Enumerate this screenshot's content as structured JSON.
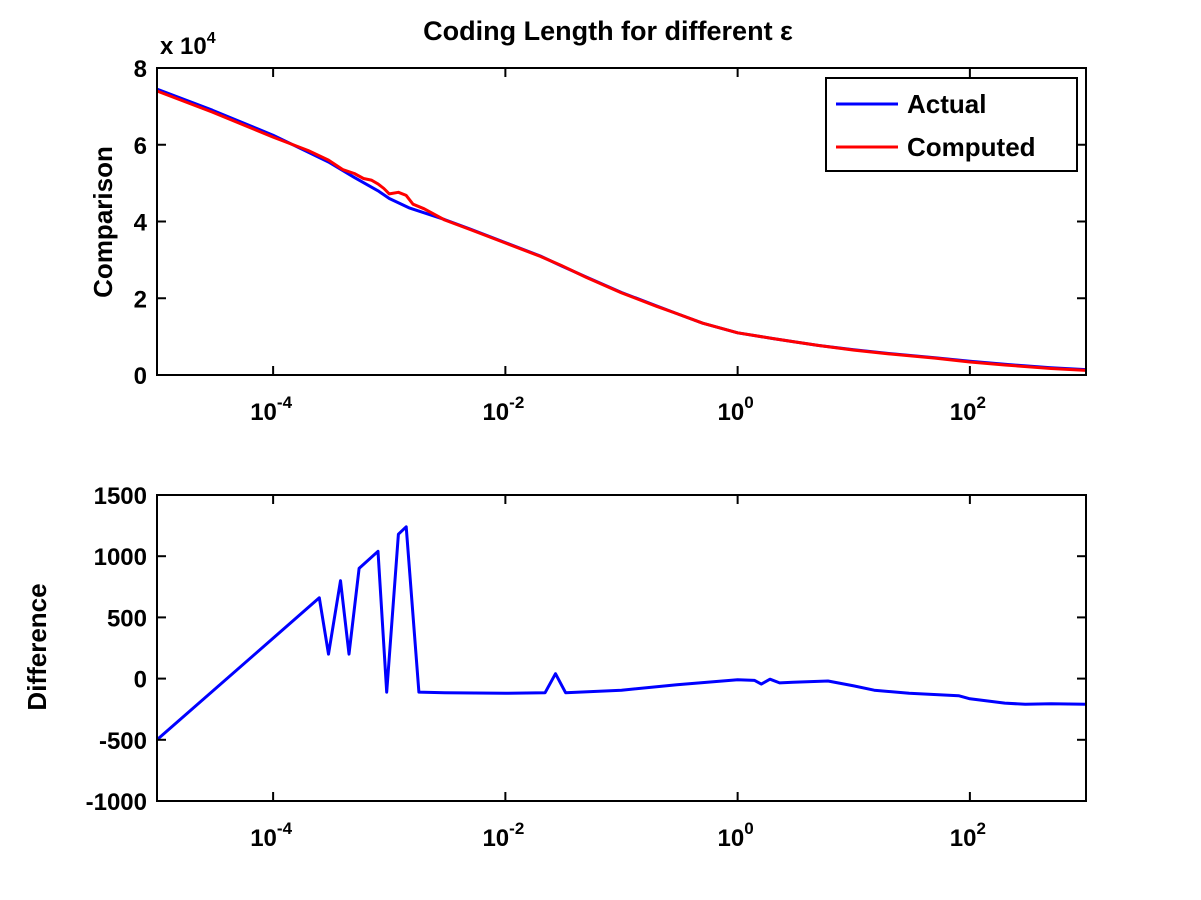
{
  "chart_data": [
    {
      "type": "line",
      "title": "Coding Length for different ε",
      "xlabel": "",
      "ylabel": "Comparison",
      "xscale": "log",
      "xlim": [
        1e-05,
        1000
      ],
      "ylim": [
        0,
        80000
      ],
      "y_multiplier_label": "x 10",
      "y_multiplier_exponent": "4",
      "x_ticks": [
        {
          "base": "10",
          "exp": "-4",
          "value": 0.0001
        },
        {
          "base": "10",
          "exp": "-2",
          "value": 0.01
        },
        {
          "base": "10",
          "exp": "0",
          "value": 1
        },
        {
          "base": "10",
          "exp": "2",
          "value": 100
        }
      ],
      "y_ticks": [
        {
          "label": "0",
          "value": 0
        },
        {
          "label": "2",
          "value": 20000
        },
        {
          "label": "4",
          "value": 40000
        },
        {
          "label": "6",
          "value": 60000
        },
        {
          "label": "8",
          "value": 80000
        }
      ],
      "grid": false,
      "legend_position": "top-right",
      "series": [
        {
          "name": "Actual",
          "color": "#0000ff",
          "points": [
            [
              1e-05,
              74500
            ],
            [
              3e-05,
              69000
            ],
            [
              0.0001,
              62500
            ],
            [
              0.0003,
              55500
            ],
            [
              0.0005,
              51500
            ],
            [
              0.0008,
              48000
            ],
            [
              0.001,
              46000
            ],
            [
              0.0015,
              43500
            ],
            [
              0.003,
              40500
            ],
            [
              0.005,
              38000
            ],
            [
              0.01,
              34500
            ],
            [
              0.02,
              31000
            ],
            [
              0.03,
              28500
            ],
            [
              0.05,
              25500
            ],
            [
              0.1,
              21500
            ],
            [
              0.2,
              18000
            ],
            [
              0.3,
              16000
            ],
            [
              0.5,
              13500
            ],
            [
              1,
              11000
            ],
            [
              2,
              9500
            ],
            [
              3,
              8700
            ],
            [
              5,
              7700
            ],
            [
              10,
              6600
            ],
            [
              20,
              5600
            ],
            [
              50,
              4500
            ],
            [
              100,
              3600
            ],
            [
              200,
              2800
            ],
            [
              500,
              1900
            ],
            [
              1000,
              1400
            ]
          ]
        },
        {
          "name": "Computed",
          "color": "#ff0000",
          "points": [
            [
              1e-05,
              74000
            ],
            [
              3e-05,
              68500
            ],
            [
              0.0001,
              62000
            ],
            [
              0.0002,
              58500
            ],
            [
              0.0003,
              56000
            ],
            [
              0.0004,
              53500
            ],
            [
              0.0005,
              52500
            ],
            [
              0.0006,
              51200
            ],
            [
              0.0007,
              50800
            ],
            [
              0.0008,
              49800
            ],
            [
              0.0009,
              48600
            ],
            [
              0.001,
              47200
            ],
            [
              0.0012,
              47600
            ],
            [
              0.0014,
              46800
            ],
            [
              0.0016,
              44500
            ],
            [
              0.002,
              43300
            ],
            [
              0.003,
              40400
            ],
            [
              0.005,
              37900
            ],
            [
              0.01,
              34400
            ],
            [
              0.02,
              30900
            ],
            [
              0.03,
              28600
            ],
            [
              0.05,
              25400
            ],
            [
              0.1,
              21400
            ],
            [
              0.2,
              17900
            ],
            [
              0.3,
              16000
            ],
            [
              0.5,
              13500
            ],
            [
              1,
              11000
            ],
            [
              2,
              9500
            ],
            [
              3,
              8700
            ],
            [
              5,
              7700
            ],
            [
              10,
              6500
            ],
            [
              20,
              5500
            ],
            [
              50,
              4400
            ],
            [
              100,
              3400
            ],
            [
              200,
              2600
            ],
            [
              500,
              1700
            ],
            [
              1000,
              1200
            ]
          ]
        }
      ]
    },
    {
      "type": "line",
      "title": "",
      "xlabel": "",
      "ylabel": "Difference",
      "xscale": "log",
      "xlim": [
        1e-05,
        1000
      ],
      "ylim": [
        -1000,
        1500
      ],
      "x_ticks": [
        {
          "base": "10",
          "exp": "-4",
          "value": 0.0001
        },
        {
          "base": "10",
          "exp": "-2",
          "value": 0.01
        },
        {
          "base": "10",
          "exp": "0",
          "value": 1
        },
        {
          "base": "10",
          "exp": "2",
          "value": 100
        }
      ],
      "y_ticks": [
        {
          "label": "-1000",
          "value": -1000
        },
        {
          "label": "-500",
          "value": -500
        },
        {
          "label": "0",
          "value": 0
        },
        {
          "label": "500",
          "value": 500
        },
        {
          "label": "1000",
          "value": 1000
        },
        {
          "label": "1500",
          "value": 1500
        }
      ],
      "grid": false,
      "series": [
        {
          "color": "#0000ff",
          "points": [
            [
              1e-05,
              -500
            ],
            [
              0.00025,
              660
            ],
            [
              0.0003,
              200
            ],
            [
              0.00038,
              800
            ],
            [
              0.00045,
              200
            ],
            [
              0.00055,
              900
            ],
            [
              0.0008,
              1040
            ],
            [
              0.00095,
              -110
            ],
            [
              0.0012,
              1180
            ],
            [
              0.0014,
              1240
            ],
            [
              0.0018,
              -110
            ],
            [
              0.003,
              -115
            ],
            [
              0.01,
              -120
            ],
            [
              0.022,
              -115
            ],
            [
              0.027,
              40
            ],
            [
              0.033,
              -115
            ],
            [
              0.1,
              -95
            ],
            [
              0.3,
              -50
            ],
            [
              1,
              -10
            ],
            [
              1.4,
              -15
            ],
            [
              1.6,
              -45
            ],
            [
              1.9,
              -5
            ],
            [
              2.3,
              -35
            ],
            [
              3,
              -30
            ],
            [
              6,
              -20
            ],
            [
              10,
              -60
            ],
            [
              15,
              -95
            ],
            [
              30,
              -120
            ],
            [
              80,
              -140
            ],
            [
              100,
              -165
            ],
            [
              200,
              -200
            ],
            [
              300,
              -210
            ],
            [
              500,
              -205
            ],
            [
              1000,
              -210
            ]
          ]
        }
      ]
    }
  ]
}
